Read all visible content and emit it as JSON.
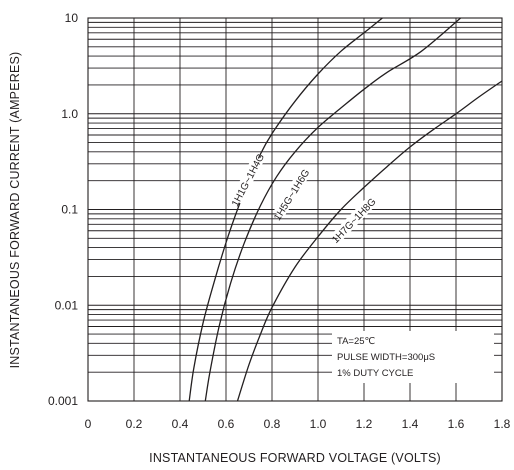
{
  "chart_data": {
    "type": "line",
    "xlabel": "INSTANTANEOUS FORWARD VOLTAGE (VOLTS)",
    "ylabel": "INSTANTANEOUS FORWARD CURRENT (AMPERES)",
    "xlim": [
      0,
      1.8
    ],
    "ylim": [
      0.001,
      10
    ],
    "yscale": "log",
    "grid": true,
    "x_ticks": [
      "0",
      "0.2",
      "0.4",
      "0.6",
      "0.8",
      "1.0",
      "1.2",
      "1.4",
      "1.6",
      "1.8"
    ],
    "y_ticks": [
      "0.001",
      "0.01",
      "0.1",
      "1.0",
      "10"
    ],
    "annotations": [
      "TA=25℃",
      "PULSE WIDTH=300μS",
      "1% DUTY CYCLE"
    ],
    "series": [
      {
        "name": "1H1G~1H4G",
        "x": [
          0.44,
          0.46,
          0.5,
          0.55,
          0.6,
          0.65,
          0.7,
          0.75,
          0.8,
          0.9,
          1.0,
          1.1,
          1.2,
          1.28
        ],
        "y": [
          0.001,
          0.0022,
          0.0065,
          0.018,
          0.045,
          0.1,
          0.2,
          0.38,
          0.62,
          1.35,
          2.6,
          4.5,
          7.0,
          10
        ]
      },
      {
        "name": "1H5G~1H6G",
        "x": [
          0.51,
          0.53,
          0.57,
          0.62,
          0.68,
          0.75,
          0.82,
          0.9,
          1.0,
          1.1,
          1.2,
          1.3,
          1.45,
          1.62
        ],
        "y": [
          0.001,
          0.002,
          0.006,
          0.017,
          0.045,
          0.11,
          0.22,
          0.4,
          0.72,
          1.15,
          1.8,
          2.7,
          4.5,
          10
        ]
      },
      {
        "name": "1H7G~1H8G",
        "x": [
          0.65,
          0.7,
          0.75,
          0.8,
          0.9,
          1.0,
          1.1,
          1.2,
          1.3,
          1.4,
          1.5,
          1.6,
          1.7,
          1.8
        ],
        "y": [
          0.001,
          0.0024,
          0.005,
          0.0095,
          0.025,
          0.052,
          0.1,
          0.17,
          0.28,
          0.45,
          0.68,
          1.0,
          1.5,
          2.2
        ]
      }
    ]
  }
}
